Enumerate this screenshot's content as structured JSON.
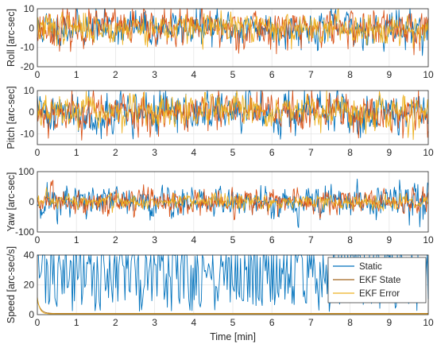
{
  "chart_data": [
    {
      "type": "line",
      "ylabel": "Roll [arc-sec]",
      "xlim": [
        0,
        10
      ],
      "ylim": [
        -20,
        10
      ],
      "xticks": [
        0,
        1,
        2,
        3,
        4,
        5,
        6,
        7,
        8,
        9,
        10
      ],
      "yticks": [
        -20,
        -10,
        0,
        10
      ],
      "grid": true,
      "series": [
        {
          "color": "#0072BD",
          "amplitude": 4.2,
          "seed": 11
        },
        {
          "color": "#D95319",
          "amplitude": 4.5,
          "seed": 23
        },
        {
          "color": "#EDB120",
          "amplitude": 3.6,
          "seed": 37
        }
      ]
    },
    {
      "type": "line",
      "ylabel": "Pitch [arc-sec]",
      "xlim": [
        0,
        10
      ],
      "ylim": [
        -15,
        10
      ],
      "xticks": [
        0,
        1,
        2,
        3,
        4,
        5,
        6,
        7,
        8,
        9,
        10
      ],
      "yticks": [
        -10,
        0,
        10
      ],
      "grid": true,
      "series": [
        {
          "color": "#0072BD",
          "amplitude": 4.5,
          "seed": 41
        },
        {
          "color": "#D95319",
          "amplitude": 4.3,
          "seed": 53
        },
        {
          "color": "#EDB120",
          "amplitude": 3.4,
          "seed": 67
        }
      ]
    },
    {
      "type": "line",
      "ylabel": "Yaw [arc-sec]",
      "xlim": [
        0,
        10
      ],
      "ylim": [
        -100,
        100
      ],
      "xticks": [
        0,
        1,
        2,
        3,
        4,
        5,
        6,
        7,
        8,
        9,
        10
      ],
      "yticks": [
        -100,
        0,
        100
      ],
      "grid": true,
      "series": [
        {
          "color": "#0072BD",
          "amplitude": 26,
          "seed": 71
        },
        {
          "color": "#D95319",
          "amplitude": 20,
          "seed": 83
        },
        {
          "color": "#EDB120",
          "amplitude": 12,
          "seed": 97
        }
      ]
    },
    {
      "type": "line",
      "xlabel": "Time [min]",
      "ylabel": "Speed [arc-sec/s]",
      "xlim": [
        0,
        10
      ],
      "ylim": [
        0,
        40
      ],
      "xticks": [
        0,
        1,
        2,
        3,
        4,
        5,
        6,
        7,
        8,
        9,
        10
      ],
      "yticks": [
        0,
        20,
        40
      ],
      "grid": true,
      "legend_position": "top-right",
      "series": [
        {
          "name": "Static",
          "color": "#0072BD"
        },
        {
          "name": "EKF State",
          "color": "#A2661D"
        },
        {
          "name": "EKF Error",
          "color": "#EDB120"
        }
      ]
    }
  ]
}
